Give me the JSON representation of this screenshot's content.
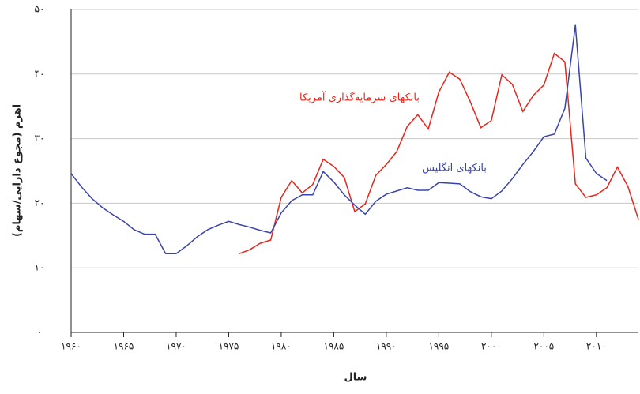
{
  "chart_data": {
    "type": "line",
    "y_label": "اهرم (مجوع دارایی/سهام)",
    "x_label": "سال",
    "x": [
      1960,
      1961,
      1962,
      1963,
      1964,
      1965,
      1966,
      1967,
      1968,
      1969,
      1970,
      1971,
      1972,
      1973,
      1974,
      1975,
      1976,
      1977,
      1978,
      1979,
      1980,
      1981,
      1982,
      1983,
      1984,
      1985,
      1986,
      1987,
      1988,
      1989,
      1990,
      1991,
      1992,
      1993,
      1994,
      1995,
      1996,
      1997,
      1998,
      1999,
      2000,
      2001,
      2002,
      2003,
      2004,
      2005,
      2006,
      2007,
      2008,
      2009,
      2010,
      2011,
      2012,
      2013,
      2014
    ],
    "series": [
      {
        "name": "بانکهای سرمایه‌گذاری آمریکا",
        "color": "#e5261c",
        "values": [
          null,
          null,
          null,
          null,
          null,
          null,
          null,
          null,
          null,
          null,
          null,
          null,
          null,
          null,
          null,
          null,
          12.2,
          12.8,
          13.8,
          14.3,
          20.9,
          23.5,
          21.6,
          22.9,
          26.8,
          25.7,
          24.0,
          18.7,
          19.9,
          24.3,
          26.0,
          28.0,
          31.9,
          33.7,
          31.5,
          37.2,
          40.3,
          39.2,
          35.7,
          31.7,
          32.8,
          39.9,
          38.4,
          34.2,
          36.7,
          38.3,
          43.2,
          41.9,
          23.0,
          20.9,
          21.3,
          22.4,
          25.6,
          22.6,
          17.5
        ]
      },
      {
        "name": "بانکهای انگلیس",
        "color": "#3a44a8",
        "values": [
          24.6,
          22.5,
          20.7,
          19.3,
          18.2,
          17.2,
          15.9,
          15.2,
          15.2,
          12.2,
          12.2,
          13.4,
          14.8,
          15.9,
          16.6,
          17.2,
          16.7,
          16.3,
          15.8,
          15.4,
          18.5,
          20.4,
          21.3,
          21.3,
          24.9,
          23.3,
          21.3,
          19.7,
          18.3,
          20.3,
          21.4,
          21.9,
          22.4,
          22.0,
          22.0,
          23.2,
          23.1,
          23.0,
          21.8,
          21.0,
          20.7,
          21.9,
          23.8,
          26.0,
          28.0,
          30.3,
          30.7,
          34.7,
          47.6,
          27.0,
          24.6,
          23.5,
          null,
          null,
          null
        ]
      }
    ],
    "xlim": [
      1960,
      2014
    ],
    "xticks": [
      {
        "value": 1960,
        "label": "۱۹۶۰"
      },
      {
        "value": 1965,
        "label": "۱۹۶۵"
      },
      {
        "value": 1970,
        "label": "۱۹۷۰"
      },
      {
        "value": 1975,
        "label": "۱۹۷۵"
      },
      {
        "value": 1980,
        "label": "۱۹۸۰"
      },
      {
        "value": 1985,
        "label": "۱۹۸۵"
      },
      {
        "value": 1990,
        "label": "۱۹۹۰"
      },
      {
        "value": 1995,
        "label": "۱۹۹۵"
      },
      {
        "value": 2000,
        "label": "۲۰۰۰"
      },
      {
        "value": 2005,
        "label": "۲۰۰۵"
      },
      {
        "value": 2010,
        "label": "۲۰۱۰"
      }
    ],
    "ylim": [
      0,
      50
    ],
    "yticks": [
      {
        "value": 0,
        "label": "۰"
      },
      {
        "value": 10,
        "label": "۱۰"
      },
      {
        "value": 20,
        "label": "۲۰"
      },
      {
        "value": 30,
        "label": "۳۰"
      },
      {
        "value": 40,
        "label": "۴۰"
      },
      {
        "value": 50,
        "label": "۵۰"
      }
    ],
    "grid": true
  }
}
